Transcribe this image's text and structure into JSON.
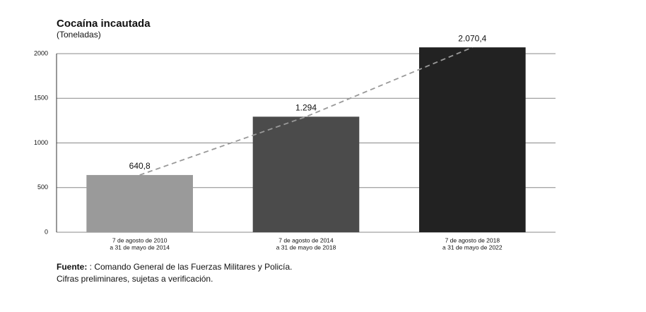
{
  "chart_data": {
    "type": "bar",
    "title": "Cocaína incautada",
    "subtitle": "(Toneladas)",
    "categories": [
      [
        "7 de agosto de 2010",
        "a 31 de mayo de 2014"
      ],
      [
        "7 de agosto de 2014",
        "a 31 de mayo de 2018"
      ],
      [
        "7 de agosto de 2018",
        "a 31 de mayo de 2022"
      ]
    ],
    "values": [
      640.8,
      1294,
      2070.4
    ],
    "value_labels": [
      "640,8",
      "1.294",
      "2.070,4"
    ],
    "colors": [
      "#9a9a9a",
      "#4b4b4b",
      "#222222"
    ],
    "ylim": [
      0,
      2100
    ],
    "yticks": [
      0,
      500,
      1000,
      1500,
      2000
    ],
    "grid": true,
    "trend_line": true,
    "trend_color": "#999999"
  },
  "footer": {
    "source_label": "Fuente:",
    "source_text": " : Comando General de las Fuerzas Militares y Policía.",
    "note": "Cifras preliminares, sujetas a verificación."
  }
}
